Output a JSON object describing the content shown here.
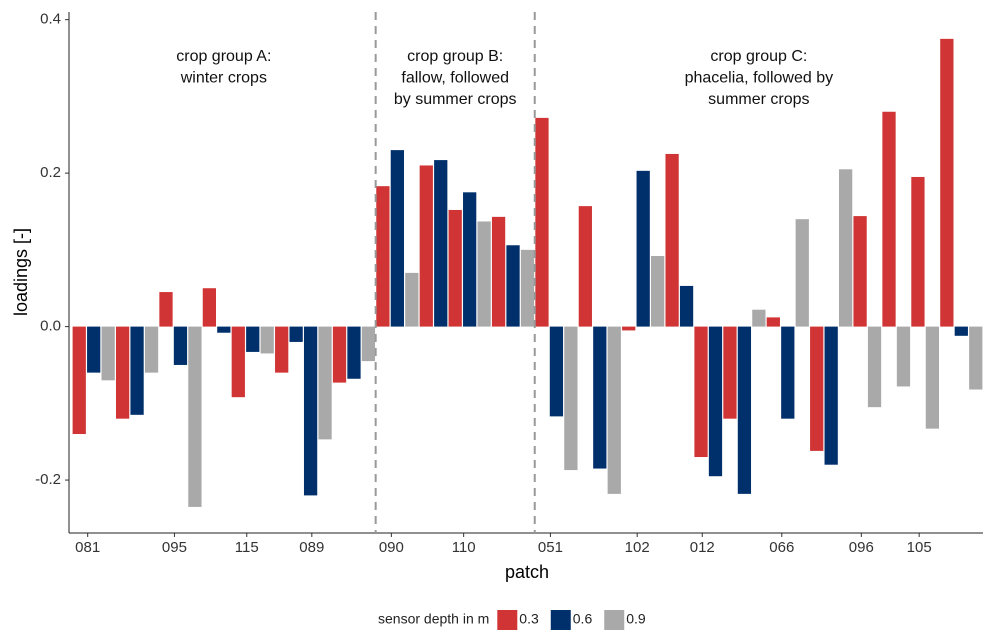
{
  "chart_data": {
    "type": "bar",
    "x_label": "patch",
    "y_label": "loadings [-]",
    "categories": [
      "081",
      null,
      "095",
      null,
      "115",
      null,
      "089",
      null,
      "090",
      null,
      "110",
      null,
      "051",
      null,
      "102",
      null,
      "012",
      null,
      "066",
      null,
      "096",
      null,
      "105",
      null
    ],
    "series": [
      {
        "name": "0.3",
        "color": "#d03434",
        "values": [
          -0.14,
          -0.12,
          0.045,
          0.05,
          -0.092,
          -0.06,
          null,
          -0.073,
          0.183,
          0.21,
          0.152,
          0.143,
          0.272,
          0.157,
          -0.005,
          0.225,
          -0.17,
          -0.12,
          0.012,
          -0.162,
          0.144,
          0.28,
          0.195,
          0.375
        ]
      },
      {
        "name": "0.6",
        "color": "#00306b",
        "values": [
          -0.06,
          -0.115,
          -0.05,
          -0.008,
          -0.033,
          -0.02,
          -0.22,
          -0.068,
          0.23,
          0.217,
          0.175,
          0.106,
          -0.117,
          -0.185,
          0.203,
          0.053,
          -0.195,
          -0.218,
          -0.12,
          -0.18,
          null,
          null,
          null,
          -0.012
        ]
      },
      {
        "name": "0.9",
        "color": "#a9a9a9",
        "values": [
          -0.07,
          -0.06,
          -0.235,
          null,
          -0.035,
          null,
          -0.147,
          -0.045,
          0.07,
          null,
          0.137,
          0.1,
          -0.187,
          -0.218,
          0.092,
          null,
          null,
          0.022,
          0.14,
          0.205,
          -0.105,
          -0.078,
          -0.133,
          -0.082
        ]
      }
    ],
    "legend_title": "sensor depth in m",
    "legend_position": "bottom",
    "ylim": [
      -0.269,
      0.41
    ],
    "yticks": [
      -0.2,
      {
        "value": 0,
        "label": "0.0"
      },
      0.2,
      0.4
    ],
    "grid": false,
    "annotations": [
      [
        "crop group A:",
        "winter crops"
      ],
      [
        "crop group B:",
        "fallow, followed",
        "by summer crops"
      ],
      [
        "crop group C:",
        "phacelia, followed by",
        "summer crops"
      ]
    ]
  }
}
